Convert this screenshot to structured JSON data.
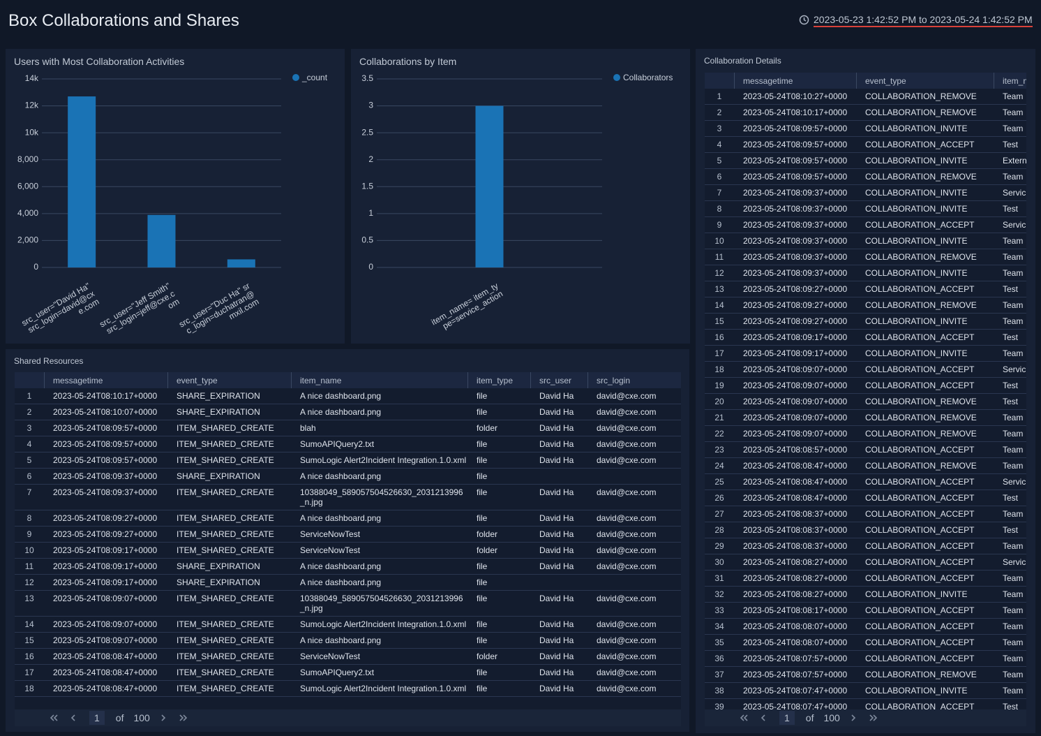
{
  "header": {
    "title": "Box Collaborations and Shares",
    "time_range": "2023-05-23 1:42:52 PM to 2023-05-24 1:42:52 PM"
  },
  "chart_data": [
    {
      "type": "bar",
      "title": "Users with Most Collaboration Activities",
      "categories": [
        "src_user=\"David Ha\" src_login=david@cxe.com",
        "src_user=\"Jeff Smith\" src_login=jeff@cxe.com",
        "src_user=\"Duc Ha\" src_login=duchatran@mxil.com"
      ],
      "series": [
        {
          "name": "_count",
          "color": "#1a73b5",
          "values": [
            12700,
            3900,
            600
          ]
        }
      ],
      "ylim": [
        0,
        14000
      ],
      "yticks": [
        0,
        {
          "value": 2000,
          "label": "2,000"
        },
        {
          "value": 4000,
          "label": "4,000"
        },
        {
          "value": 6000,
          "label": "6,000"
        },
        {
          "value": 8000,
          "label": "8,000"
        },
        {
          "value": 10000,
          "label": "10k"
        },
        {
          "value": 12000,
          "label": "12k"
        },
        {
          "value": 14000,
          "label": "14k"
        }
      ],
      "grid": true,
      "legend": "top-right"
    },
    {
      "type": "bar",
      "title": "Collaborations by Item",
      "categories": [
        null,
        "item_name= item_type=service_action",
        null
      ],
      "series": [
        {
          "name": "Collaborators",
          "color": "#1a73b5",
          "values": [
            null,
            3,
            null
          ]
        }
      ],
      "ylim": [
        0,
        3.5
      ],
      "yticks": [
        0,
        0.5,
        1,
        1.5,
        2,
        2.5,
        3,
        3.5
      ],
      "grid": true,
      "legend": "top-right"
    }
  ],
  "shared_resources": {
    "title": "Shared Resources",
    "columns": [
      "messagetime",
      "event_type",
      "item_name",
      "item_type",
      "src_user",
      "src_login"
    ],
    "rows": [
      [
        1,
        "2023-05-24T08:10:17+0000",
        "SHARE_EXPIRATION",
        "A nice dashboard.png",
        "file",
        "David Ha",
        "david@cxe.com"
      ],
      [
        2,
        "2023-05-24T08:10:07+0000",
        "SHARE_EXPIRATION",
        "A nice dashboard.png",
        "file",
        "David Ha",
        "david@cxe.com"
      ],
      [
        3,
        "2023-05-24T08:09:57+0000",
        "ITEM_SHARED_CREATE",
        "blah",
        "folder",
        "David Ha",
        "david@cxe.com"
      ],
      [
        4,
        "2023-05-24T08:09:57+0000",
        "ITEM_SHARED_CREATE",
        "SumoAPIQuery2.txt",
        "file",
        "David Ha",
        "david@cxe.com"
      ],
      [
        5,
        "2023-05-24T08:09:57+0000",
        "ITEM_SHARED_CREATE",
        "SumoLogic Alert2Incident Integration.1.0.xml",
        "file",
        "David Ha",
        "david@cxe.com"
      ],
      [
        6,
        "2023-05-24T08:09:37+0000",
        "SHARE_EXPIRATION",
        "A nice dashboard.png",
        "file",
        null,
        null
      ],
      [
        7,
        "2023-05-24T08:09:37+0000",
        "ITEM_SHARED_CREATE",
        "10388049_589057504526630_2031213996_n.jpg",
        "file",
        "David Ha",
        "david@cxe.com"
      ],
      [
        8,
        "2023-05-24T08:09:27+0000",
        "ITEM_SHARED_CREATE",
        "A nice dashboard.png",
        "file",
        "David Ha",
        "david@cxe.com"
      ],
      [
        9,
        "2023-05-24T08:09:27+0000",
        "ITEM_SHARED_CREATE",
        "ServiceNowTest",
        "folder",
        "David Ha",
        "david@cxe.com"
      ],
      [
        10,
        "2023-05-24T08:09:17+0000",
        "ITEM_SHARED_CREATE",
        "ServiceNowTest",
        "folder",
        "David Ha",
        "david@cxe.com"
      ],
      [
        11,
        "2023-05-24T08:09:17+0000",
        "SHARE_EXPIRATION",
        "A nice dashboard.png",
        "file",
        "David Ha",
        "david@cxe.com"
      ],
      [
        12,
        "2023-05-24T08:09:17+0000",
        "SHARE_EXPIRATION",
        "A nice dashboard.png",
        "file",
        null,
        null
      ],
      [
        13,
        "2023-05-24T08:09:07+0000",
        "ITEM_SHARED_CREATE",
        "10388049_589057504526630_2031213996_n.jpg",
        "file",
        "David Ha",
        "david@cxe.com"
      ],
      [
        14,
        "2023-05-24T08:09:07+0000",
        "ITEM_SHARED_CREATE",
        "SumoLogic Alert2Incident Integration.1.0.xml",
        "file",
        "David Ha",
        "david@cxe.com"
      ],
      [
        15,
        "2023-05-24T08:09:07+0000",
        "ITEM_SHARED_CREATE",
        "A nice dashboard.png",
        "file",
        "David Ha",
        "david@cxe.com"
      ],
      [
        16,
        "2023-05-24T08:08:47+0000",
        "ITEM_SHARED_CREATE",
        "ServiceNowTest",
        "folder",
        "David Ha",
        "david@cxe.com"
      ],
      [
        17,
        "2023-05-24T08:08:47+0000",
        "ITEM_SHARED_CREATE",
        "SumoAPIQuery2.txt",
        "file",
        "David Ha",
        "david@cxe.com"
      ],
      [
        18,
        "2023-05-24T08:08:47+0000",
        "ITEM_SHARED_CREATE",
        "SumoLogic Alert2Incident Integration.1.0.xml",
        "file",
        "David Ha",
        "david@cxe.com"
      ]
    ],
    "pager": {
      "page": 1,
      "of": "of",
      "total_pages": 100
    }
  },
  "collaboration_details": {
    "title": "Collaboration Details",
    "columns": [
      "messagetime",
      "event_type",
      "item_name"
    ],
    "rows": [
      [
        1,
        "2023-05-24T08:10:27+0000",
        "COLLABORATION_REMOVE",
        "Team"
      ],
      [
        2,
        "2023-05-24T08:10:17+0000",
        "COLLABORATION_REMOVE",
        "Team"
      ],
      [
        3,
        "2023-05-24T08:09:57+0000",
        "COLLABORATION_INVITE",
        "Team"
      ],
      [
        4,
        "2023-05-24T08:09:57+0000",
        "COLLABORATION_ACCEPT",
        "Test"
      ],
      [
        5,
        "2023-05-24T08:09:57+0000",
        "COLLABORATION_INVITE",
        "Extern"
      ],
      [
        6,
        "2023-05-24T08:09:57+0000",
        "COLLABORATION_REMOVE",
        "Team"
      ],
      [
        7,
        "2023-05-24T08:09:37+0000",
        "COLLABORATION_INVITE",
        "Servic"
      ],
      [
        8,
        "2023-05-24T08:09:37+0000",
        "COLLABORATION_INVITE",
        "Test"
      ],
      [
        9,
        "2023-05-24T08:09:37+0000",
        "COLLABORATION_ACCEPT",
        "Servic"
      ],
      [
        10,
        "2023-05-24T08:09:37+0000",
        "COLLABORATION_INVITE",
        "Team"
      ],
      [
        11,
        "2023-05-24T08:09:37+0000",
        "COLLABORATION_REMOVE",
        "Team"
      ],
      [
        12,
        "2023-05-24T08:09:37+0000",
        "COLLABORATION_INVITE",
        "Team"
      ],
      [
        13,
        "2023-05-24T08:09:27+0000",
        "COLLABORATION_ACCEPT",
        "Test"
      ],
      [
        14,
        "2023-05-24T08:09:27+0000",
        "COLLABORATION_REMOVE",
        "Team"
      ],
      [
        15,
        "2023-05-24T08:09:27+0000",
        "COLLABORATION_INVITE",
        "Team"
      ],
      [
        16,
        "2023-05-24T08:09:17+0000",
        "COLLABORATION_ACCEPT",
        "Test"
      ],
      [
        17,
        "2023-05-24T08:09:17+0000",
        "COLLABORATION_INVITE",
        "Team"
      ],
      [
        18,
        "2023-05-24T08:09:07+0000",
        "COLLABORATION_ACCEPT",
        "Servic"
      ],
      [
        19,
        "2023-05-24T08:09:07+0000",
        "COLLABORATION_ACCEPT",
        "Test"
      ],
      [
        20,
        "2023-05-24T08:09:07+0000",
        "COLLABORATION_REMOVE",
        "Test"
      ],
      [
        21,
        "2023-05-24T08:09:07+0000",
        "COLLABORATION_REMOVE",
        "Team"
      ],
      [
        22,
        "2023-05-24T08:09:07+0000",
        "COLLABORATION_REMOVE",
        "Team"
      ],
      [
        23,
        "2023-05-24T08:08:57+0000",
        "COLLABORATION_ACCEPT",
        "Team"
      ],
      [
        24,
        "2023-05-24T08:08:47+0000",
        "COLLABORATION_REMOVE",
        "Team"
      ],
      [
        25,
        "2023-05-24T08:08:47+0000",
        "COLLABORATION_ACCEPT",
        "Servic"
      ],
      [
        26,
        "2023-05-24T08:08:47+0000",
        "COLLABORATION_ACCEPT",
        "Test"
      ],
      [
        27,
        "2023-05-24T08:08:37+0000",
        "COLLABORATION_ACCEPT",
        "Team"
      ],
      [
        28,
        "2023-05-24T08:08:37+0000",
        "COLLABORATION_ACCEPT",
        "Test"
      ],
      [
        29,
        "2023-05-24T08:08:37+0000",
        "COLLABORATION_ACCEPT",
        "Team"
      ],
      [
        30,
        "2023-05-24T08:08:27+0000",
        "COLLABORATION_ACCEPT",
        "Servic"
      ],
      [
        31,
        "2023-05-24T08:08:27+0000",
        "COLLABORATION_ACCEPT",
        "Team"
      ],
      [
        32,
        "2023-05-24T08:08:27+0000",
        "COLLABORATION_INVITE",
        "Team"
      ],
      [
        33,
        "2023-05-24T08:08:17+0000",
        "COLLABORATION_ACCEPT",
        "Team"
      ],
      [
        34,
        "2023-05-24T08:08:07+0000",
        "COLLABORATION_ACCEPT",
        "Team"
      ],
      [
        35,
        "2023-05-24T08:08:07+0000",
        "COLLABORATION_ACCEPT",
        "Team"
      ],
      [
        36,
        "2023-05-24T08:07:57+0000",
        "COLLABORATION_ACCEPT",
        "Team"
      ],
      [
        37,
        "2023-05-24T08:07:57+0000",
        "COLLABORATION_REMOVE",
        "Team"
      ],
      [
        38,
        "2023-05-24T08:07:47+0000",
        "COLLABORATION_INVITE",
        "Team"
      ],
      [
        39,
        "2023-05-24T08:07:47+0000",
        "COLLABORATION_ACCEPT",
        "Test"
      ]
    ],
    "pager": {
      "page": 1,
      "of": "of",
      "total_pages": 100
    }
  }
}
